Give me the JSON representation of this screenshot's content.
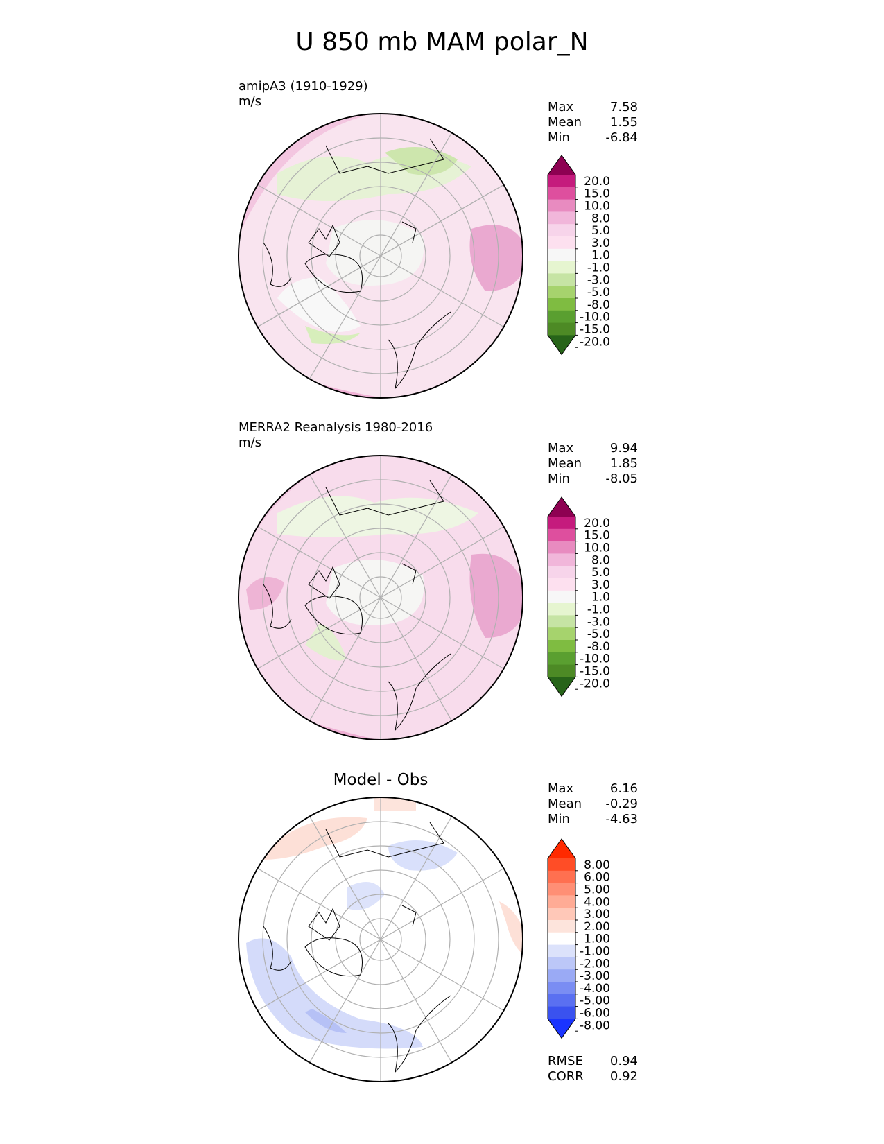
{
  "title": "U 850 mb MAM polar_N",
  "panels": [
    {
      "label_line1": "amipA3 (1910-1929)",
      "label_line2": "m/s",
      "stats": {
        "max_label": "Max",
        "max": "7.58",
        "mean_label": "Mean",
        "mean": "1.55",
        "min_label": "Min",
        "min": "-6.84"
      },
      "colorbar": {
        "ticks": [
          "20.0",
          "15.0",
          "10.0",
          "8.0",
          "5.0",
          "3.0",
          "1.0",
          "-1.0",
          "-3.0",
          "-5.0",
          "-8.0",
          "-10.0",
          "-15.0",
          "-20.0"
        ],
        "colors": [
          "#8e0152",
          "#c51b7d",
          "#de4f9e",
          "#e88bc0",
          "#f1b6da",
          "#f7d4ea",
          "#fde0ef",
          "#f7f7f7",
          "#e6f5d0",
          "#c6e4a4",
          "#a6d36d",
          "#7fbc41",
          "#5a9f30",
          "#4d8a25",
          "#276419"
        ]
      }
    },
    {
      "label_line1": "MERRA2 Reanalysis 1980-2016",
      "label_line2": "m/s",
      "stats": {
        "max_label": "Max",
        "max": "9.94",
        "mean_label": "Mean",
        "mean": "1.85",
        "min_label": "Min",
        "min": "-8.05"
      },
      "colorbar": {
        "ticks": [
          "20.0",
          "15.0",
          "10.0",
          "8.0",
          "5.0",
          "3.0",
          "1.0",
          "-1.0",
          "-3.0",
          "-5.0",
          "-8.0",
          "-10.0",
          "-15.0",
          "-20.0"
        ],
        "colors": [
          "#8e0152",
          "#c51b7d",
          "#de4f9e",
          "#e88bc0",
          "#f1b6da",
          "#f7d4ea",
          "#fde0ef",
          "#f7f7f7",
          "#e6f5d0",
          "#c6e4a4",
          "#a6d36d",
          "#7fbc41",
          "#5a9f30",
          "#4d8a25",
          "#276419"
        ]
      }
    },
    {
      "title": "Model - Obs",
      "stats": {
        "max_label": "Max",
        "max": "6.16",
        "mean_label": "Mean",
        "mean": "-0.29",
        "min_label": "Min",
        "min": "-4.63"
      },
      "colorbar": {
        "ticks": [
          "8.00",
          "6.00",
          "5.00",
          "4.00",
          "3.00",
          "2.00",
          "1.00",
          "-1.00",
          "-2.00",
          "-3.00",
          "-4.00",
          "-5.00",
          "-6.00",
          "-8.00"
        ],
        "colors": [
          "#ff2a00",
          "#ff4d26",
          "#ff7050",
          "#ff8f75",
          "#ffab95",
          "#ffc8b8",
          "#fde4dc",
          "#ffffff",
          "#dce2fb",
          "#bcc7f8",
          "#9aaaf5",
          "#7a8df3",
          "#5a70f1",
          "#3a52ef",
          "#1a34ff"
        ]
      },
      "metrics": {
        "rmse_label": "RMSE",
        "rmse": "0.94",
        "corr_label": "CORR",
        "corr": "0.92"
      }
    }
  ],
  "colors": {
    "map_background_0": "#f9e3ef",
    "map_background_1": "#f7dceb",
    "map_background_2": "#ffffff",
    "grid": "#b0b0b0",
    "coast": "#000000"
  }
}
